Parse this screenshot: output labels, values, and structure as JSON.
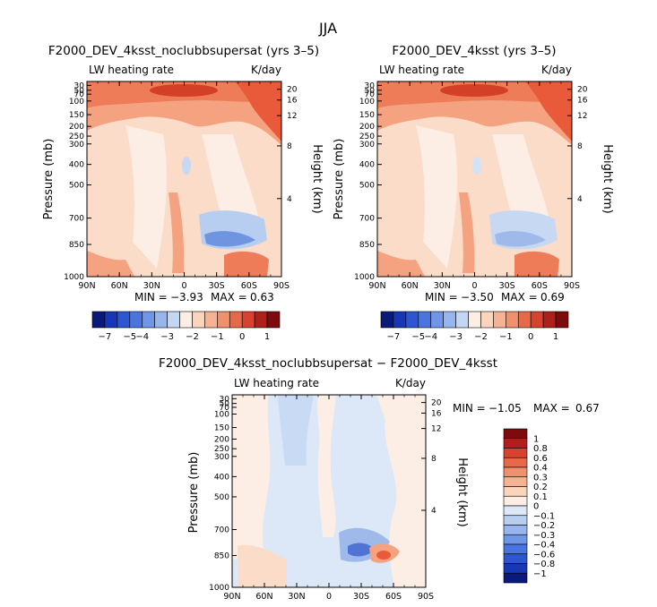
{
  "figure": {
    "title": "JJA"
  },
  "palette": {
    "bg": "#ffffff",
    "stroke": "#000000"
  },
  "chart_data": [
    {
      "type": "heatmap",
      "title": "F2000_DEV_4ksst_noclubbsupersat (yrs 3–5)",
      "subtitle_left": "LW heating rate",
      "subtitle_right": "K/day",
      "ylabel": "Pressure (mb)",
      "ylabel_right": "Height (km)",
      "x_ticks": [
        "90N",
        "60N",
        "30N",
        "0",
        "30S",
        "60S",
        "90S"
      ],
      "y_ticks": [
        "30",
        "50",
        "70",
        "100",
        "150",
        "200",
        "250",
        "300",
        "400",
        "500",
        "700",
        "850",
        "1000"
      ],
      "y_right_ticks": [
        "20",
        "16",
        "12",
        "8",
        "4"
      ],
      "stats": {
        "min_label": "MIN =",
        "min": "−3.93",
        "max_label": "MAX =",
        "max": "0.63"
      },
      "colorbar_ticks": [
        "−7",
        "−5",
        "−4",
        "−3",
        "−2",
        "−1",
        "0",
        "1"
      ]
    },
    {
      "type": "heatmap",
      "title": "F2000_DEV_4ksst (yrs 3–5)",
      "subtitle_left": "LW heating rate",
      "subtitle_right": "K/day",
      "ylabel": "Pressure (mb)",
      "ylabel_right": "Height (km)",
      "x_ticks": [
        "90N",
        "60N",
        "30N",
        "0",
        "30S",
        "60S",
        "90S"
      ],
      "y_ticks": [
        "30",
        "50",
        "70",
        "100",
        "150",
        "200",
        "250",
        "300",
        "400",
        "500",
        "700",
        "850",
        "1000"
      ],
      "y_right_ticks": [
        "20",
        "16",
        "12",
        "8",
        "4"
      ],
      "stats": {
        "min_label": "MIN =",
        "min": "−3.50",
        "max_label": "MAX =",
        "max": "0.69"
      },
      "colorbar_ticks": [
        "−7",
        "−5",
        "−4",
        "−3",
        "−2",
        "−1",
        "0",
        "1"
      ]
    },
    {
      "type": "heatmap",
      "title": "F2000_DEV_4ksst_noclubbsupersat − F2000_DEV_4ksst",
      "subtitle_left": "LW heating rate",
      "subtitle_right": "K/day",
      "ylabel": "Pressure (mb)",
      "ylabel_right": "Height (km)",
      "x_ticks": [
        "90N",
        "60N",
        "30N",
        "0",
        "30S",
        "60S",
        "90S"
      ],
      "y_ticks": [
        "30",
        "50",
        "70",
        "100",
        "150",
        "200",
        "250",
        "300",
        "400",
        "500",
        "700",
        "850",
        "1000"
      ],
      "y_right_ticks": [
        "20",
        "16",
        "12",
        "8",
        "4"
      ],
      "stats": {
        "min_label": "MIN =",
        "min": "−1.05",
        "max_label": "MAX =",
        "max": "0.67"
      },
      "colorbar_ticks": [
        "1",
        "0.8",
        "0.6",
        "0.4",
        "0.3",
        "0.2",
        "0.1",
        "0",
        "−0.1",
        "−0.2",
        "−0.3",
        "−0.4",
        "−0.6",
        "−0.8",
        "−1"
      ]
    }
  ]
}
